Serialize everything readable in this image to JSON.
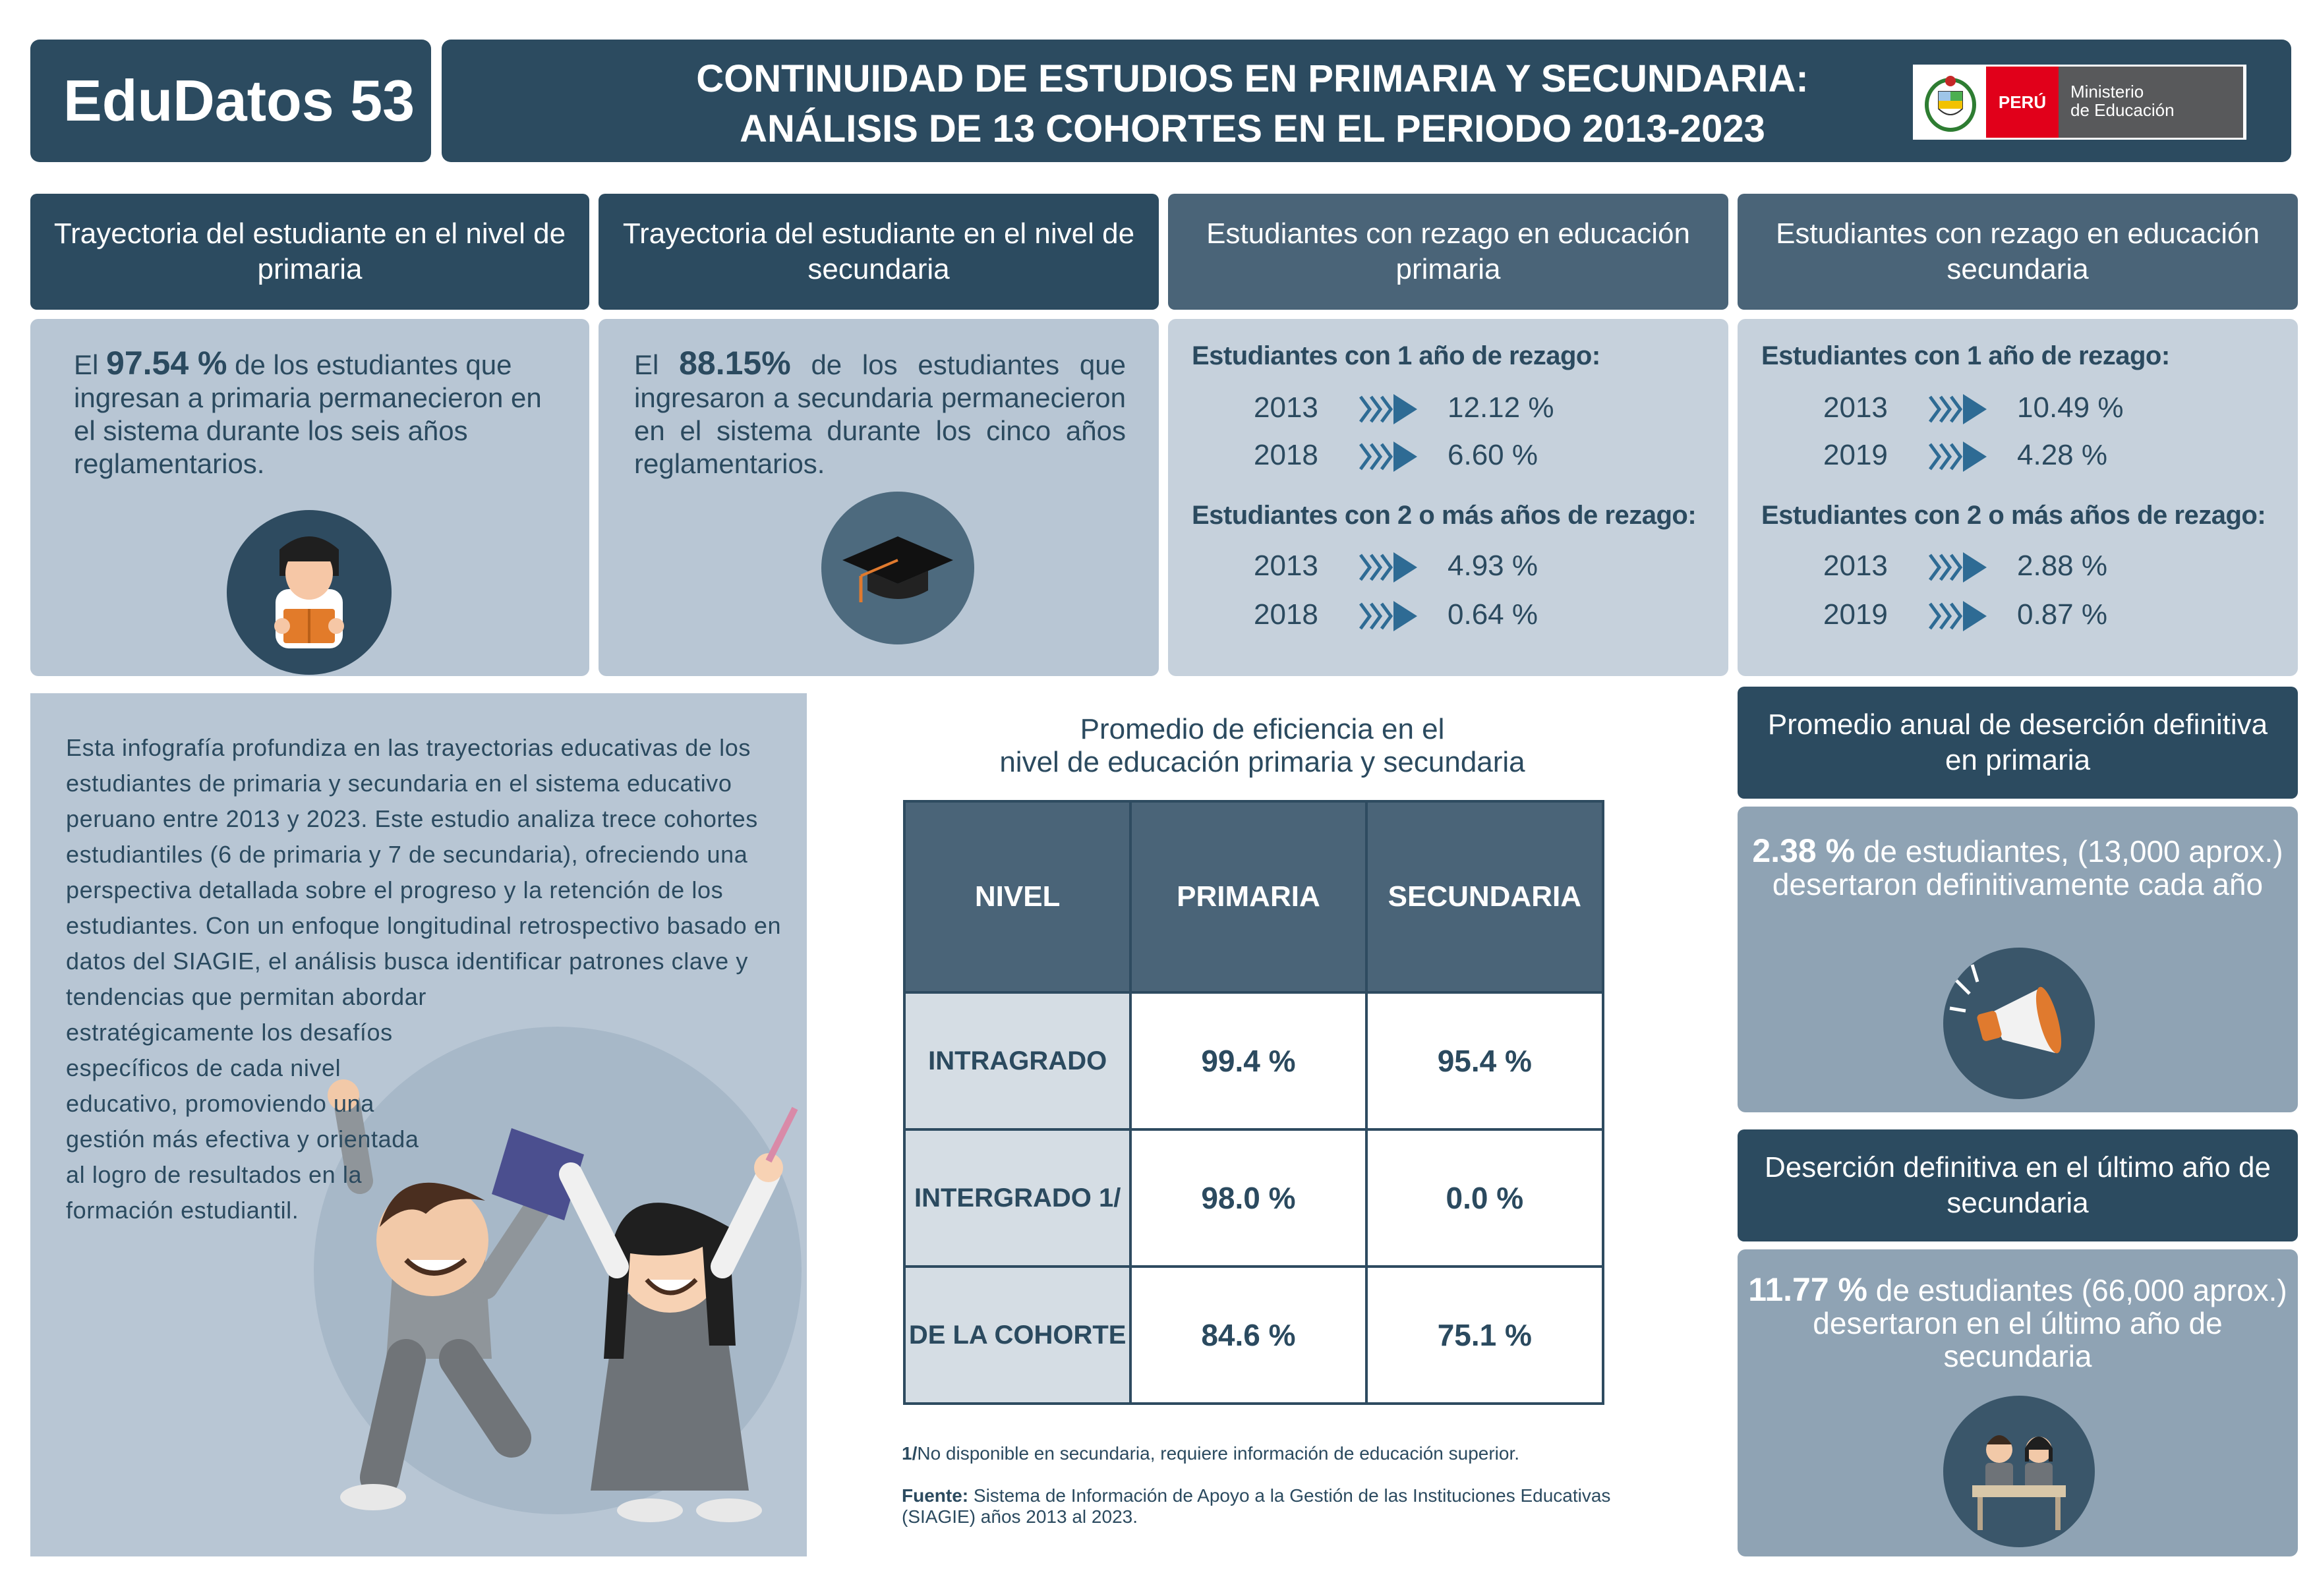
{
  "header": {
    "brand": "EduDatos 53",
    "title_line1": "CONTINUIDAD DE ESTUDIOS EN PRIMARIA Y SECUNDARIA:",
    "title_line2": "ANÁLISIS DE 13 COHORTES EN EL PERIODO 2013-2023",
    "logo": {
      "country": "PERÚ",
      "ministry_line1": "Ministerio",
      "ministry_line2": "de Educación",
      "icon": "coat-of-arms-icon"
    }
  },
  "sections": {
    "primaria_trayectoria": {
      "title": "Trayectoria del estudiante en el nivel de primaria",
      "pre": "El ",
      "highlight": "97.54 %",
      "post": " de los estudiantes que ingresan a primaria permanecieron en el sistema durante los seis años reglamentarios.",
      "icon": "student-reading-icon"
    },
    "secundaria_trayectoria": {
      "title": "Trayectoria del estudiante en el nivel de secundaria",
      "pre": "El ",
      "highlight": "88.15%",
      "post": " de los estudiantes que ingresaron a secundaria permanecieron en el sistema durante los cinco años reglamentarios.",
      "icon": "graduation-cap-icon"
    },
    "rezago_primaria": {
      "title": "Estudiantes con rezago en educación primaria",
      "group1_label": "Estudiantes con 1 año de rezago:",
      "group1": [
        {
          "year": "2013",
          "value": "12.12 %"
        },
        {
          "year": "2018",
          "value": "6.60 %"
        }
      ],
      "group2_label": "Estudiantes con 2 o más años de rezago:",
      "group2": [
        {
          "year": "2013",
          "value": "4.93 %"
        },
        {
          "year": "2018",
          "value": "0.64 %"
        }
      ]
    },
    "rezago_secundaria": {
      "title": "Estudiantes con rezago en educación secundaria",
      "group1_label": "Estudiantes con 1 año de rezago:",
      "group1": [
        {
          "year": "2013",
          "value": "10.49 %"
        },
        {
          "year": "2019",
          "value": "4.28 %"
        }
      ],
      "group2_label": "Estudiantes con 2 o más años de rezago:",
      "group2": [
        {
          "year": "2013",
          "value": "2.88 %"
        },
        {
          "year": "2019",
          "value": "0.87 %"
        }
      ]
    }
  },
  "intro": {
    "text_wide": "Esta infografía profundiza en las trayectorias educativas de los estudiantes de primaria y secundaria en el sistema educativo peruano entre 2013 y 2023. Este estudio analiza trece cohortes estudiantiles (6 de primaria y 7 de secundaria), ofreciendo una perspectiva detallada sobre el progreso y la retención de los estudiantes. Con un enfoque longitudinal retrospectivo basado en datos del SIAGIE, el análisis busca identificar patrones clave y tendencias que permitan abordar",
    "text_narrow": "estratégicamente los desafíos específicos de cada nivel educativo, promoviendo una gestión más efectiva y orientada al logro de resultados en la formación estudiantil.",
    "illustration": "happy-students-illustration"
  },
  "efficiency_table": {
    "title_line1": "Promedio de eficiencia en el",
    "title_line2": "nivel de educación primaria y secundaria",
    "headers": [
      "NIVEL",
      "PRIMARIA",
      "SECUNDARIA"
    ],
    "rows": [
      {
        "label": "INTRAGRADO",
        "primaria": "99.4 %",
        "secundaria": "95.4 %"
      },
      {
        "label": "INTERGRADO 1/",
        "primaria": "98.0 %",
        "secundaria": "0.0 %"
      },
      {
        "label": "DE LA COHORTE",
        "primaria": "84.6 %",
        "secundaria": "75.1 %"
      }
    ],
    "footnote_mark": "1/",
    "footnote": "No disponible en secundaria, requiere información de educación superior.",
    "source_label": "Fuente:",
    "source": " Sistema de Información de Apoyo a la Gestión de las Instituciones Educativas (SIAGIE) años 2013 al 2023."
  },
  "desercion_primaria": {
    "title": "Promedio anual de deserción definitiva en primaria",
    "highlight": "2.38 %",
    "text": " de estudiantes, (13,000 aprox.) desertaron definitivamente cada año",
    "icon": "megaphone-icon"
  },
  "desercion_secundaria": {
    "title": "Deserción definitiva en el último año de secundaria",
    "highlight": "11.77 %",
    "text": " de estudiantes (66,000 aprox.) desertaron en el último año de secundaria",
    "icon": "students-at-desk-icon"
  },
  "colors": {
    "dark": "#2c4b60",
    "mid": "#4a6478",
    "card": "#c6d1dc",
    "card_blue": "#b8c6d4",
    "accent": "#e07a2e",
    "peru_red": "#e1001a"
  }
}
